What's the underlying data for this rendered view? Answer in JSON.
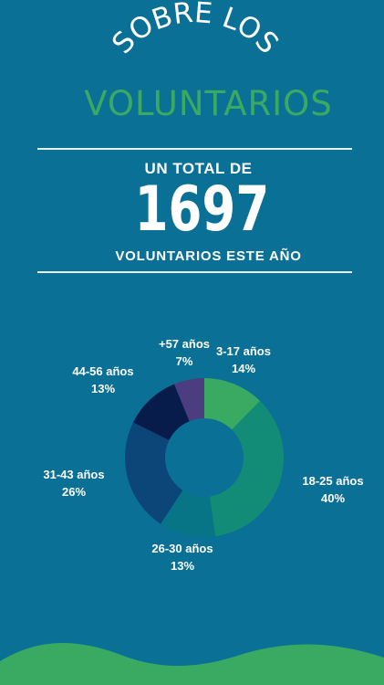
{
  "header": {
    "arc_title": "SOBRE LOS",
    "subtitle": "VOLUNTARIOS"
  },
  "summary": {
    "label": "UN TOTAL DE",
    "number": "1697",
    "caption": "VOLUNTARIOS ESTE AÑO"
  },
  "colors": {
    "background": "#0b7096",
    "accent_green": "#3aaa62"
  },
  "chart_data": {
    "type": "pie",
    "donut": true,
    "categories": [
      "3-17 años",
      "18-25 años",
      "26-30 años",
      "31-43 años",
      "44-56 años",
      "+57 años"
    ],
    "values": [
      14,
      40,
      13,
      26,
      13,
      7
    ],
    "value_labels": [
      "14%",
      "40%",
      "13%",
      "26%",
      "13%",
      "7%"
    ],
    "colors": [
      "#3aaa62",
      "#138c77",
      "#077586",
      "#0c4577",
      "#081c4c",
      "#4b3d7f"
    ]
  }
}
